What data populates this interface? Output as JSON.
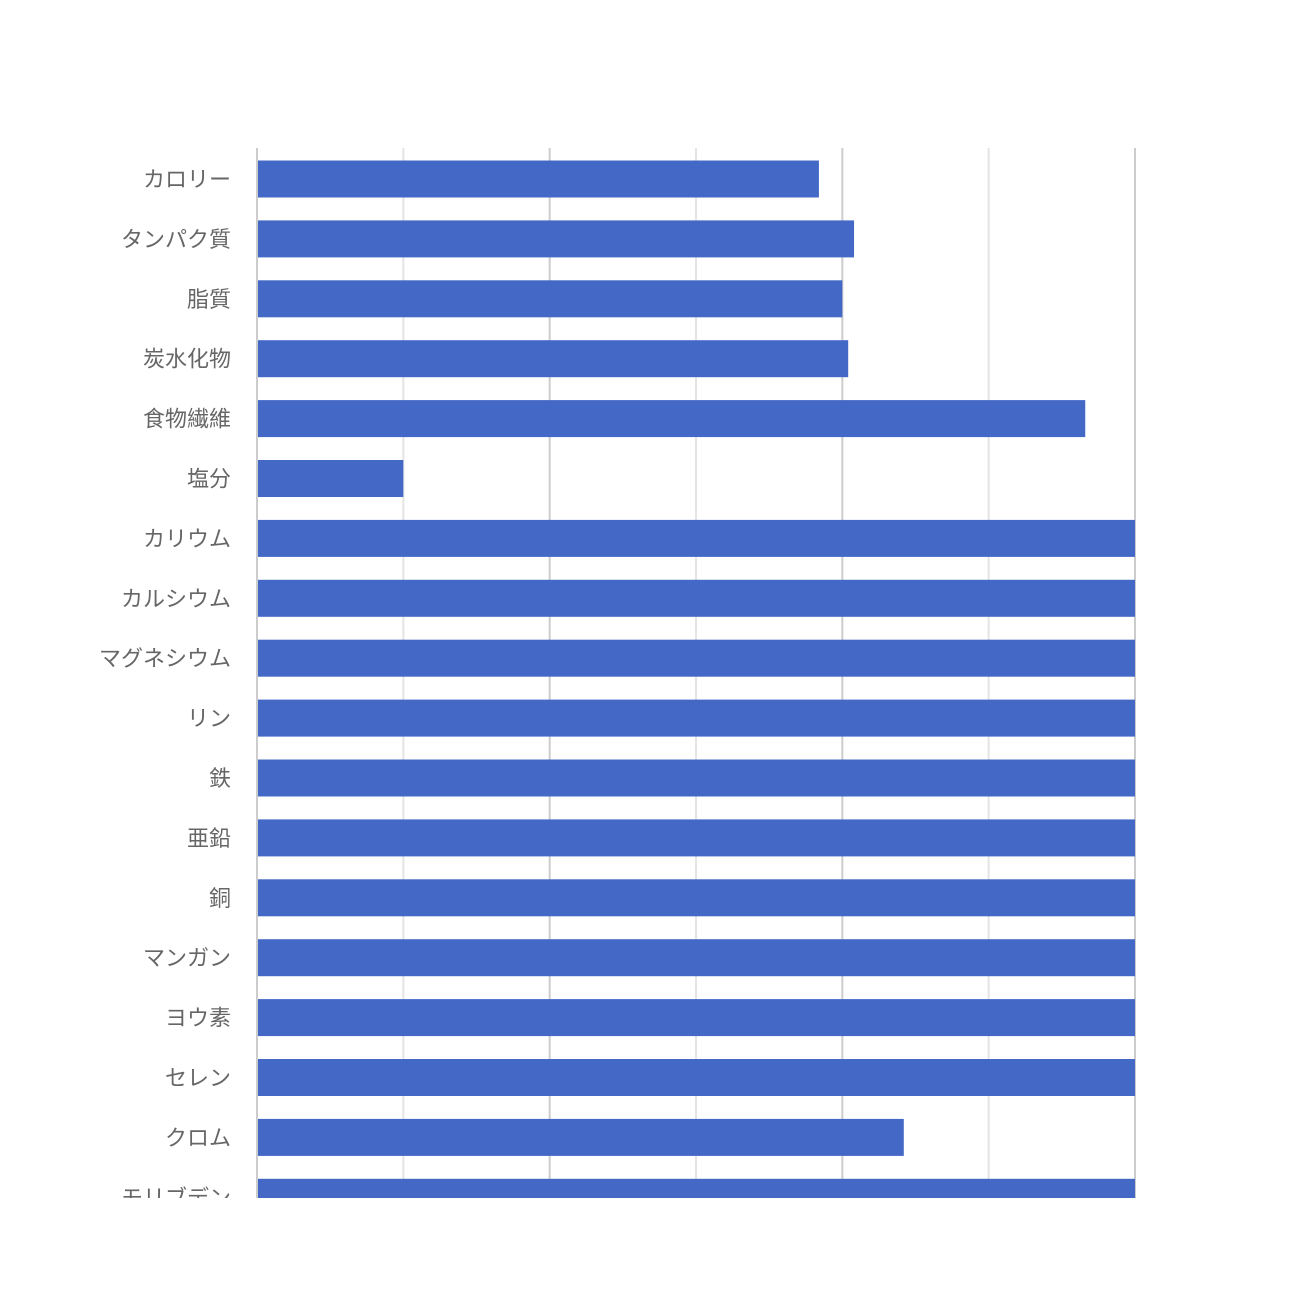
{
  "chart_data": {
    "type": "bar",
    "orientation": "horizontal",
    "title": "",
    "xlabel": "",
    "ylabel": "",
    "xlim": [
      0,
      150
    ],
    "grid": true,
    "tick_labels_shown": false,
    "bar_color": "#4368C6",
    "categories": [
      "カロリー",
      "タンパク質",
      "脂質",
      "炭水化物",
      "食物繊維",
      "塩分",
      "カリウム",
      "カルシウム",
      "マグネシウム",
      "リン",
      "鉄",
      "亜鉛",
      "銅",
      "マンガン",
      "ヨウ素",
      "セレン",
      "クロム",
      "モリブデン"
    ],
    "values": [
      96,
      102,
      100,
      101,
      141.5,
      25,
      150,
      150,
      150,
      150,
      150,
      150,
      150,
      150,
      150,
      150,
      110.5,
      150
    ],
    "note_clipped": "bars reaching the right edge extend beyond the visible axis range"
  }
}
